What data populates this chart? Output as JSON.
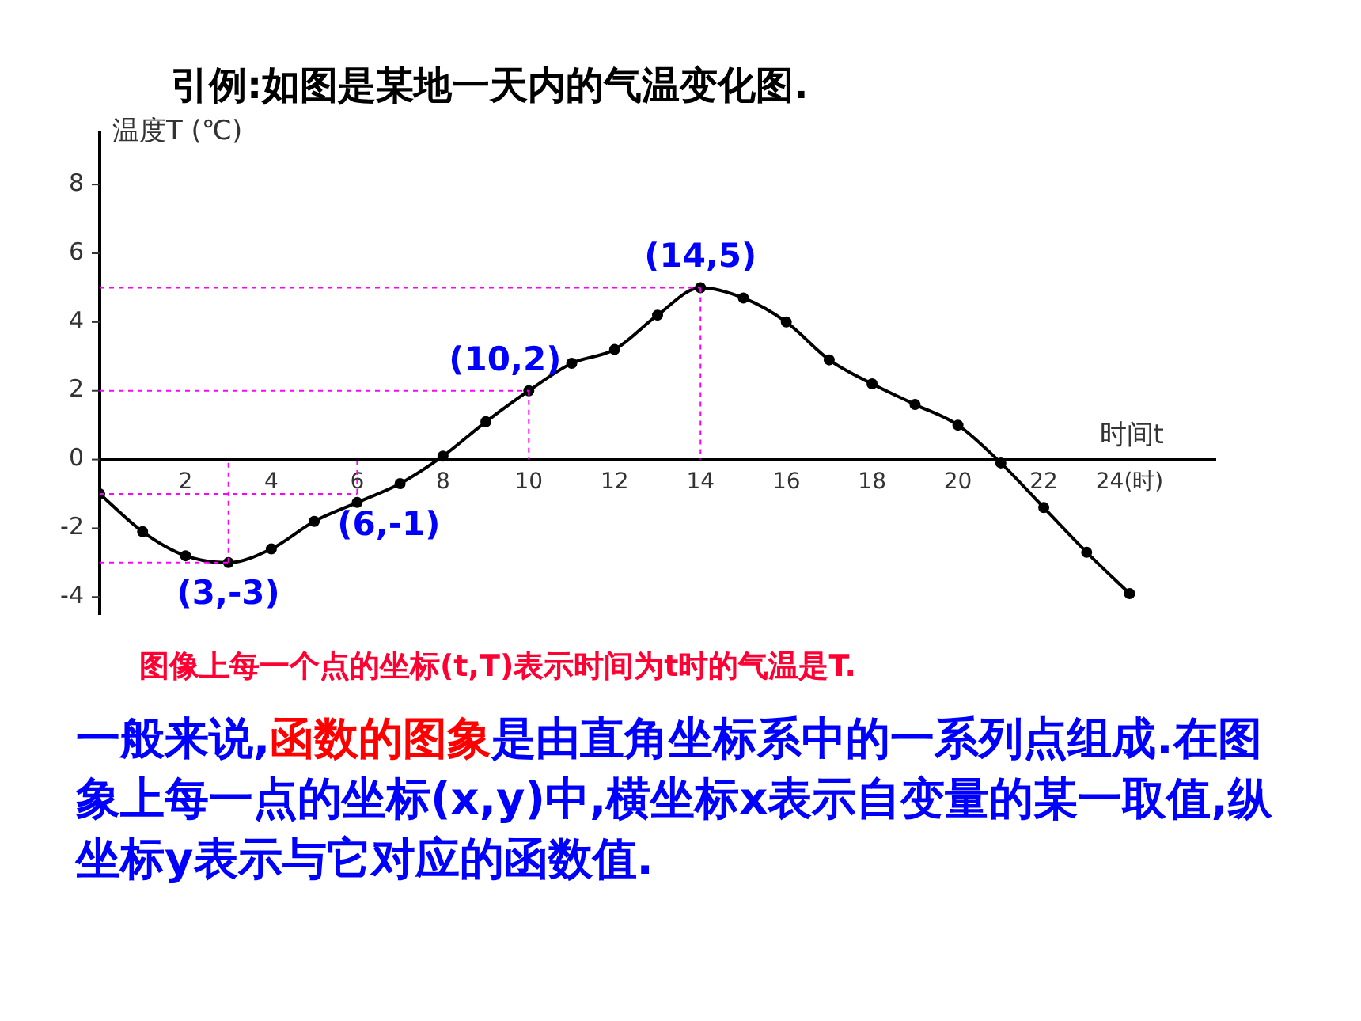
{
  "chart_data": {
    "type": "line",
    "title": "引例:如图是某地一天内的气温变化图.",
    "xlabel": "时间t",
    "ylabel": "温度T (℃)",
    "x": [
      0,
      1,
      2,
      3,
      4,
      5,
      6,
      7,
      8,
      9,
      10,
      11,
      12,
      13,
      14,
      15,
      16,
      17,
      18,
      19,
      20,
      21,
      22,
      23,
      24
    ],
    "series": [
      {
        "color": "#000000",
        "values": [
          -1,
          -2.1,
          -2.8,
          -3,
          -2.6,
          -1.8,
          -1.25,
          -0.7,
          0.1,
          1.1,
          2,
          2.8,
          3.2,
          4.2,
          5,
          4.7,
          4,
          2.9,
          2.2,
          1.6,
          1,
          -0.1,
          -1.4,
          -2.7,
          -3.9
        ]
      }
    ],
    "xlim": [
      0,
      26
    ],
    "xticks": [
      2,
      4,
      6,
      8,
      10,
      12,
      14,
      16,
      18,
      20,
      22,
      {
        "value": 24,
        "label": "24(时)"
      }
    ],
    "ylim": [
      -4.5,
      9.5
    ],
    "yticks": [
      -4,
      -2,
      0,
      2,
      4,
      6,
      8
    ],
    "grid": false,
    "legend": false,
    "marker": "circle",
    "line_style": "solid",
    "annotations": [
      {
        "text": "(3,-3)",
        "x": 3,
        "y": -3
      },
      {
        "text": "(6,-1)",
        "x": 6,
        "y": -1
      },
      {
        "text": "(10,2)",
        "x": 10,
        "y": 2
      },
      {
        "text": "(14,5)",
        "x": 14,
        "y": 5
      },
      "图像上每一个点的坐标(t,T)表示时间为t时的气温是T.",
      "一般来说,",
      "函数的图象",
      "是由直角坐标系中的一系列点组成.在图象上每一点的坐标(x,y)中,横坐标x表示自变量的某一取值,纵坐标y表示与它对应的函数值."
    ]
  }
}
